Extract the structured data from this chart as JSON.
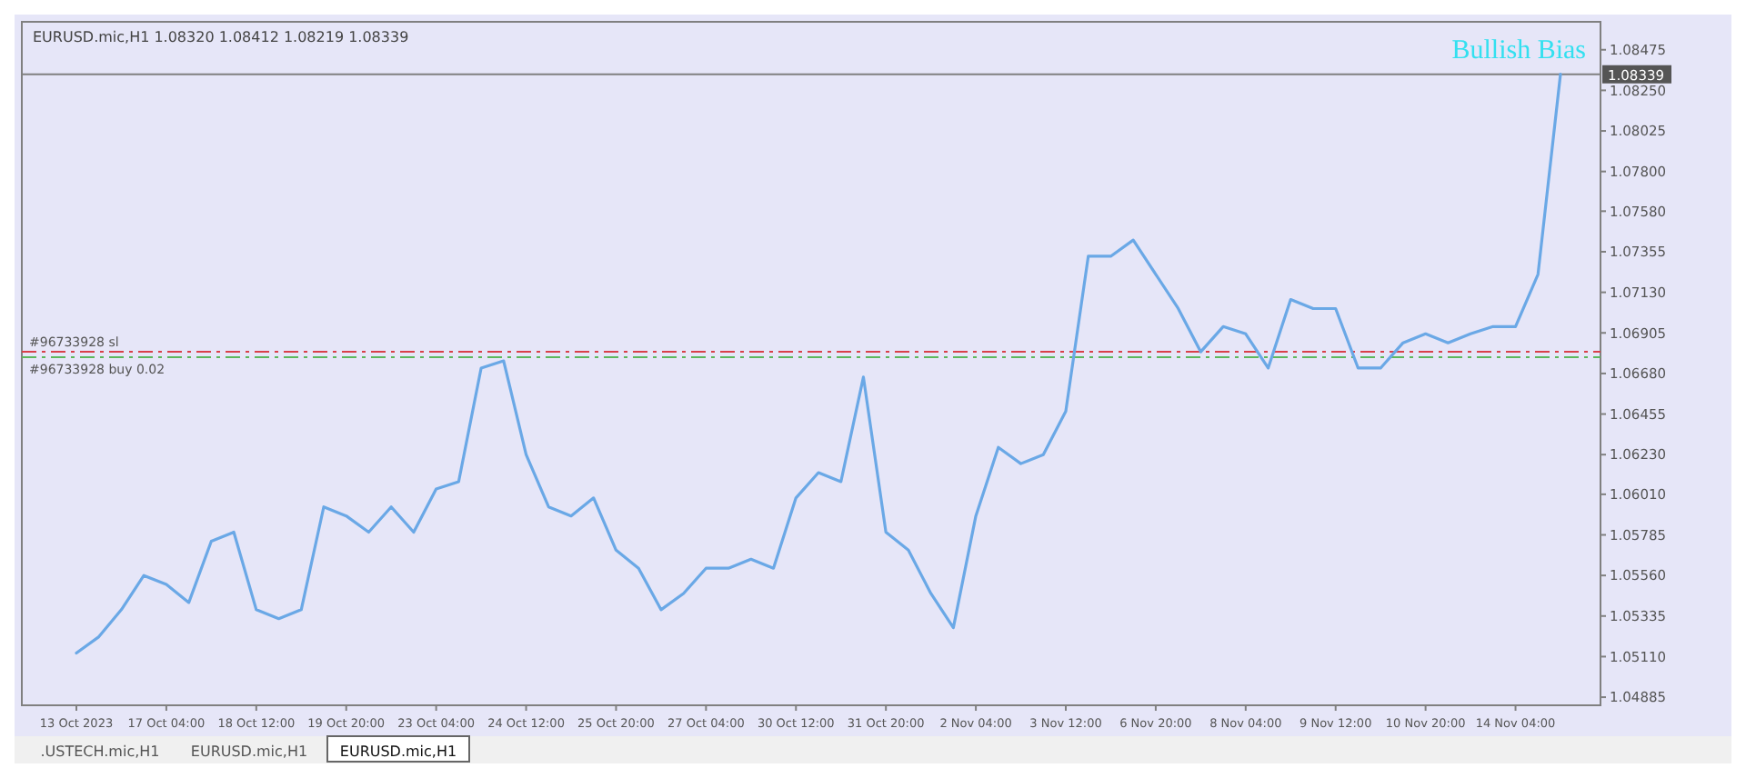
{
  "chart_data": {
    "type": "line",
    "title": "EURUSD.mic,H1  1.08320 1.08412 1.08219 1.08339",
    "categories": [
      "13 Oct 2023",
      null,
      null,
      null,
      "17 Oct 04:00",
      null,
      null,
      null,
      "18 Oct 12:00",
      null,
      null,
      null,
      "19 Oct 20:00",
      null,
      null,
      null,
      "23 Oct 04:00",
      null,
      null,
      null,
      "24 Oct 12:00",
      null,
      null,
      null,
      "25 Oct 20:00",
      null,
      null,
      null,
      "27 Oct 04:00",
      null,
      null,
      null,
      "30 Oct 12:00",
      null,
      null,
      null,
      "31 Oct 20:00",
      null,
      null,
      null,
      "2 Nov 04:00",
      null,
      null,
      null,
      "3 Nov 12:00",
      null,
      null,
      null,
      "6 Nov 20:00",
      null,
      null,
      null,
      "8 Nov 04:00",
      null,
      null,
      null,
      "9 Nov 12:00",
      null,
      null,
      null,
      "10 Nov 20:00",
      null,
      null,
      null,
      "14 Nov 04:00",
      null,
      null
    ],
    "series": [
      {
        "color": "#6aa8e6",
        "values": [
          1.0513,
          1.0522,
          1.0537,
          1.0556,
          1.0551,
          1.0541,
          1.0575,
          1.058,
          1.0537,
          1.0532,
          1.0537,
          1.0594,
          1.0589,
          1.058,
          1.0594,
          1.058,
          1.0604,
          1.0608,
          1.0671,
          1.0675,
          1.0623,
          1.0594,
          1.0589,
          1.0599,
          1.057,
          1.056,
          1.0537,
          1.0546,
          1.056,
          1.056,
          1.0565,
          1.056,
          1.0599,
          1.0613,
          1.0608,
          1.0666,
          1.058,
          1.057,
          1.0546,
          1.0527,
          1.0589,
          1.0627,
          1.0618,
          1.0623,
          1.0647,
          1.0733,
          1.0733,
          1.0742,
          1.0723,
          1.0704,
          1.068,
          1.0694,
          1.069,
          1.0671,
          1.0709,
          1.0704,
          1.0704,
          1.0671,
          1.0671,
          1.0685,
          1.069,
          1.0685,
          1.069,
          1.0694,
          1.0694,
          1.0723,
          1.0834
        ]
      }
    ],
    "ylim": [
      1.0484,
      1.0863
    ],
    "yticks": [
      {
        "value": 1.08475,
        "label": "1.08475"
      },
      {
        "value": 1.0825,
        "label": "1.08250"
      },
      {
        "value": 1.08025,
        "label": "1.08025"
      },
      {
        "value": 1.078,
        "label": "1.07800"
      },
      {
        "value": 1.0758,
        "label": "1.07580"
      },
      {
        "value": 1.07355,
        "label": "1.07355"
      },
      {
        "value": 1.0713,
        "label": "1.07130"
      },
      {
        "value": 1.06905,
        "label": "1.06905"
      },
      {
        "value": 1.0668,
        "label": "1.06680"
      },
      {
        "value": 1.06455,
        "label": "1.06455"
      },
      {
        "value": 1.0623,
        "label": "1.06230"
      },
      {
        "value": 1.0601,
        "label": "1.06010"
      },
      {
        "value": 1.05785,
        "label": "1.05785"
      },
      {
        "value": 1.0556,
        "label": "1.05560"
      },
      {
        "value": 1.05335,
        "label": "1.05335"
      },
      {
        "value": 1.0511,
        "label": "1.05110"
      },
      {
        "value": 1.04885,
        "label": "1.04885"
      }
    ],
    "ref_lines": [
      {
        "axis": "y",
        "value": 1.08339,
        "label": "1.08339",
        "color": "#808080",
        "line_style": "solid"
      },
      {
        "axis": "y",
        "value": 1.068,
        "label": "#96733928 sl",
        "color": "#d9404a",
        "line_style": "dashed"
      },
      {
        "axis": "y",
        "value": 1.0677,
        "label": "#96733928 buy 0.02",
        "color": "#5cb85c",
        "line_style": "dashed"
      }
    ],
    "annotations": [
      "Bullish Bias",
      ".USTECH.mic,H1",
      "EURUSD.mic,H1",
      "EURUSD.mic,H1"
    ],
    "grid": false,
    "marker": "none",
    "line_style": "solid"
  }
}
